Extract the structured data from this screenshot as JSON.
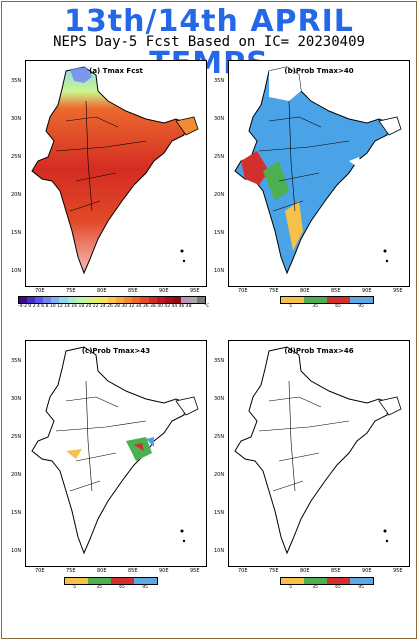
{
  "overlay": {
    "line1": "13th/14th  APRIL",
    "line2": "TEMPS"
  },
  "subtitle": "NEPS Day-5 Fcst Based on IC= 20230409",
  "panels": [
    {
      "label": "(a) Tmax Fcst",
      "type": "temperature"
    },
    {
      "label": "(b)Prob Tmax>40",
      "type": "probability"
    },
    {
      "label": "(c)Prob Tmax>43",
      "type": "probability"
    },
    {
      "label": "(d)Prob Tmax>46",
      "type": "probability"
    }
  ],
  "axes": {
    "lat_ticks": [
      "35N",
      "30N",
      "25N",
      "20N",
      "15N",
      "10N"
    ],
    "lon_ticks": [
      "70E",
      "75E",
      "80E",
      "85E",
      "90E",
      "95E"
    ]
  },
  "temp_colorbar": {
    "labels": "-4-2 0 2 4 6 8 10 12 14 16 18 20 22 24 26 28 30 32 34 36 38 40 42 44 46 48",
    "unit": "°C",
    "colors": [
      "#3b0a8c",
      "#4a2bc0",
      "#5a55e6",
      "#6f86f0",
      "#7fb3f5",
      "#8fd6f2",
      "#a2ecd8",
      "#b8f5b0",
      "#cdf58a",
      "#e2f070",
      "#f4e35e",
      "#f8c84e",
      "#f6a840",
      "#f28a36",
      "#ec6a2e",
      "#e24a28",
      "#d42c22",
      "#c0181c",
      "#a80e18",
      "#8e0a14",
      "#c090c0",
      "#a8a8a8",
      "#7a7a7a"
    ]
  },
  "prob_colorbar": {
    "labels": [
      "5",
      "35",
      "65",
      "95"
    ],
    "colors": [
      "#f4c24a",
      "#4caf50",
      "#d32f2f",
      "#5aa8e8"
    ]
  },
  "colors": {
    "title_blue": "#2468e8",
    "hot_red": "#e53a25",
    "prob_blue": "#4aa3e6"
  }
}
